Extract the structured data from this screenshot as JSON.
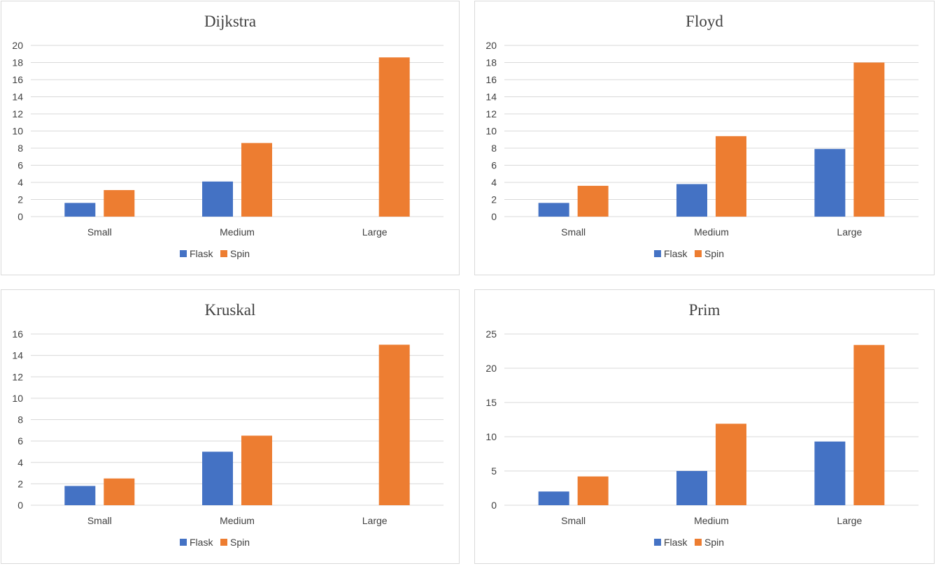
{
  "chart_data": [
    {
      "type": "bar",
      "title": "Dijkstra",
      "categories": [
        "Small",
        "Medium",
        "Large"
      ],
      "series": [
        {
          "name": "Flask",
          "values": [
            1.6,
            4.1,
            null
          ]
        },
        {
          "name": "Spin",
          "values": [
            3.1,
            8.6,
            18.6
          ]
        }
      ],
      "ylim": [
        0,
        20
      ],
      "yticks": [
        0,
        2,
        4,
        6,
        8,
        10,
        12,
        14,
        16,
        18,
        20
      ],
      "grid": true,
      "legend": "bottom"
    },
    {
      "type": "bar",
      "title": "Floyd",
      "categories": [
        "Small",
        "Medium",
        "Large"
      ],
      "series": [
        {
          "name": "Flask",
          "values": [
            1.6,
            3.8,
            7.9
          ]
        },
        {
          "name": "Spin",
          "values": [
            3.6,
            9.4,
            18.0
          ]
        }
      ],
      "ylim": [
        0,
        20
      ],
      "yticks": [
        0,
        2,
        4,
        6,
        8,
        10,
        12,
        14,
        16,
        18,
        20
      ],
      "grid": true,
      "legend": "bottom"
    },
    {
      "type": "bar",
      "title": "Kruskal",
      "categories": [
        "Small",
        "Medium",
        "Large"
      ],
      "series": [
        {
          "name": "Flask",
          "values": [
            1.8,
            5.0,
            null
          ]
        },
        {
          "name": "Spin",
          "values": [
            2.5,
            6.5,
            15.0
          ]
        }
      ],
      "ylim": [
        0,
        16
      ],
      "yticks": [
        0,
        2,
        4,
        6,
        8,
        10,
        12,
        14,
        16
      ],
      "grid": true,
      "legend": "bottom"
    },
    {
      "type": "bar",
      "title": "Prim",
      "categories": [
        "Small",
        "Medium",
        "Large"
      ],
      "series": [
        {
          "name": "Flask",
          "values": [
            2.0,
            5.0,
            9.3
          ]
        },
        {
          "name": "Spin",
          "values": [
            4.2,
            11.9,
            23.4
          ]
        }
      ],
      "ylim": [
        0,
        25
      ],
      "yticks": [
        0,
        5,
        10,
        15,
        20,
        25
      ],
      "grid": true,
      "legend": "bottom"
    }
  ],
  "colors": {
    "Flask": "#4472c4",
    "Spin": "#ed7d31",
    "grid": "#d9d9d9",
    "text": "#404040"
  }
}
